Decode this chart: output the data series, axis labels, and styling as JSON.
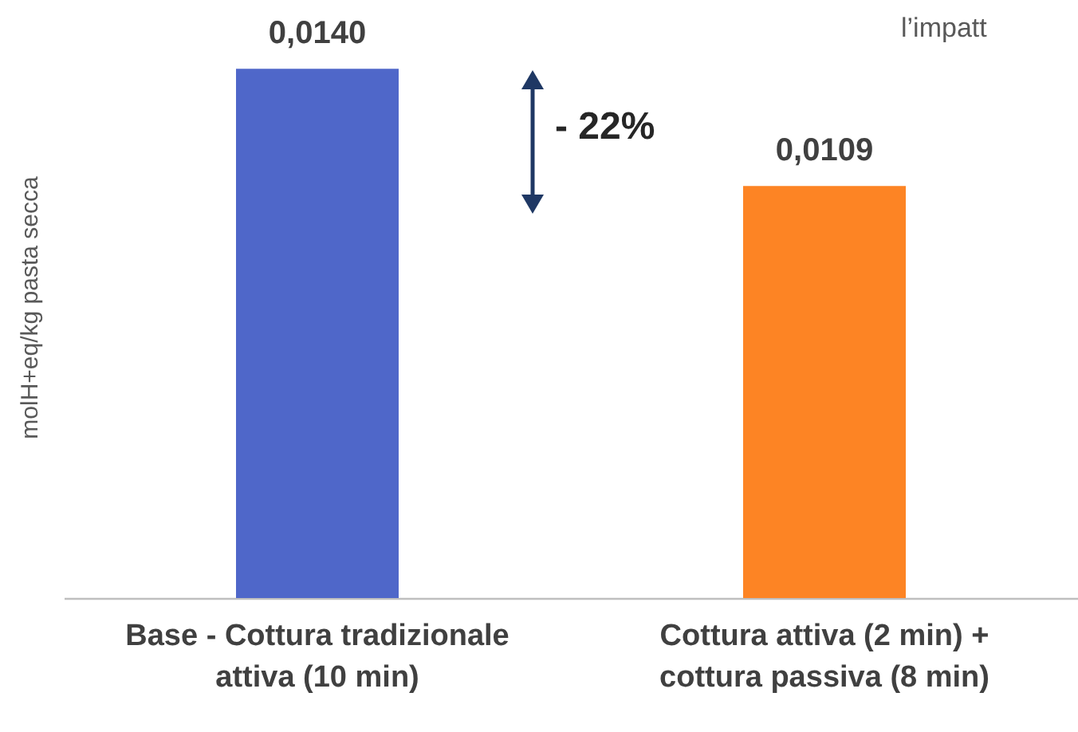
{
  "chart_data": {
    "type": "bar",
    "ylabel": "molH+eq/kg pasta secca",
    "categories": [
      "Base - Cottura tradizionale\nattiva (10 min)",
      "Cottura attiva (2 min) +\ncottura passiva (8 min)"
    ],
    "values": [
      0.014,
      0.0109
    ],
    "colors": [
      "#4f67c9",
      "#fd8424"
    ],
    "value_labels": [
      "0,0140",
      "0,0109"
    ],
    "annotations": [
      "- 22%",
      "l’impatt"
    ],
    "tick_labels": "x"
  }
}
